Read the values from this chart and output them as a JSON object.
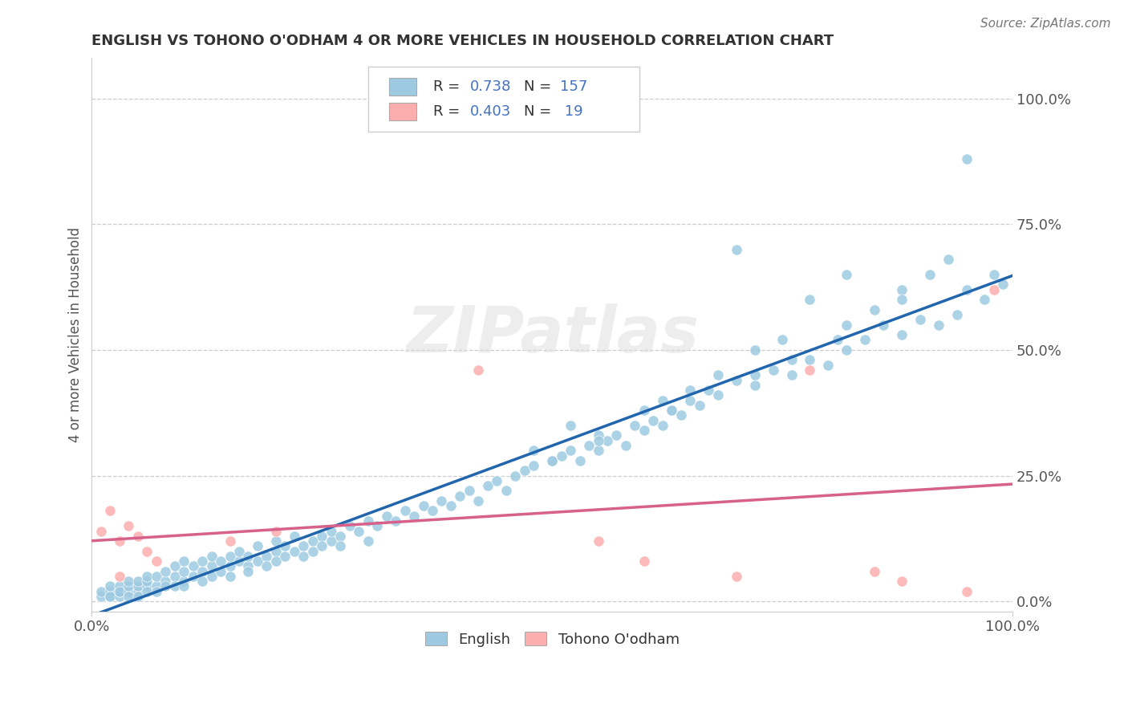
{
  "title": "ENGLISH VS TOHONO O'ODHAM 4 OR MORE VEHICLES IN HOUSEHOLD CORRELATION CHART",
  "source": "Source: ZipAtlas.com",
  "ylabel": "4 or more Vehicles in Household",
  "ytick_labels": [
    "0.0%",
    "25.0%",
    "50.0%",
    "75.0%",
    "100.0%"
  ],
  "ytick_positions": [
    0.0,
    0.25,
    0.5,
    0.75,
    1.0
  ],
  "english_R": 0.738,
  "english_N": 157,
  "tohono_R": 0.403,
  "tohono_N": 19,
  "english_color": "#9ecae1",
  "tohono_color": "#fcaeae",
  "english_line_color": "#2166ac",
  "tohono_line_color": "#d6618a",
  "legend_color": "#4472c4",
  "watermark": "ZIPatlas",
  "english_scatter_x": [
    0.01,
    0.01,
    0.02,
    0.02,
    0.02,
    0.02,
    0.03,
    0.03,
    0.03,
    0.03,
    0.04,
    0.04,
    0.04,
    0.04,
    0.05,
    0.05,
    0.05,
    0.05,
    0.06,
    0.06,
    0.06,
    0.06,
    0.07,
    0.07,
    0.07,
    0.08,
    0.08,
    0.08,
    0.09,
    0.09,
    0.09,
    0.1,
    0.1,
    0.1,
    0.1,
    0.11,
    0.11,
    0.12,
    0.12,
    0.12,
    0.13,
    0.13,
    0.13,
    0.14,
    0.14,
    0.15,
    0.15,
    0.15,
    0.16,
    0.16,
    0.17,
    0.17,
    0.17,
    0.18,
    0.18,
    0.19,
    0.19,
    0.2,
    0.2,
    0.2,
    0.21,
    0.21,
    0.22,
    0.22,
    0.23,
    0.23,
    0.24,
    0.24,
    0.25,
    0.25,
    0.26,
    0.26,
    0.27,
    0.27,
    0.28,
    0.29,
    0.3,
    0.3,
    0.31,
    0.32,
    0.33,
    0.34,
    0.35,
    0.36,
    0.37,
    0.38,
    0.39,
    0.4,
    0.41,
    0.42,
    0.43,
    0.44,
    0.45,
    0.46,
    0.47,
    0.48,
    0.5,
    0.51,
    0.52,
    0.53,
    0.54,
    0.55,
    0.56,
    0.57,
    0.58,
    0.59,
    0.6,
    0.61,
    0.62,
    0.63,
    0.64,
    0.65,
    0.66,
    0.67,
    0.68,
    0.7,
    0.72,
    0.74,
    0.76,
    0.78,
    0.8,
    0.82,
    0.84,
    0.86,
    0.88,
    0.9,
    0.92,
    0.94,
    0.95,
    0.97,
    0.99,
    0.6,
    0.65,
    0.68,
    0.55,
    0.52,
    0.48,
    0.72,
    0.75,
    0.78,
    0.82,
    0.85,
    0.88,
    0.91,
    0.93,
    0.95,
    0.98,
    0.62,
    0.7,
    0.76,
    0.82,
    0.88,
    0.5,
    0.55,
    0.63,
    0.72,
    0.81
  ],
  "english_scatter_y": [
    0.01,
    0.02,
    0.01,
    0.02,
    0.03,
    0.01,
    0.01,
    0.02,
    0.03,
    0.02,
    0.02,
    0.03,
    0.01,
    0.04,
    0.02,
    0.03,
    0.04,
    0.01,
    0.03,
    0.04,
    0.02,
    0.05,
    0.03,
    0.05,
    0.02,
    0.04,
    0.06,
    0.03,
    0.05,
    0.07,
    0.03,
    0.04,
    0.06,
    0.08,
    0.03,
    0.05,
    0.07,
    0.06,
    0.08,
    0.04,
    0.07,
    0.09,
    0.05,
    0.08,
    0.06,
    0.07,
    0.09,
    0.05,
    0.08,
    0.1,
    0.07,
    0.09,
    0.06,
    0.08,
    0.11,
    0.09,
    0.07,
    0.1,
    0.12,
    0.08,
    0.09,
    0.11,
    0.1,
    0.13,
    0.11,
    0.09,
    0.12,
    0.1,
    0.13,
    0.11,
    0.12,
    0.14,
    0.13,
    0.11,
    0.15,
    0.14,
    0.12,
    0.16,
    0.15,
    0.17,
    0.16,
    0.18,
    0.17,
    0.19,
    0.18,
    0.2,
    0.19,
    0.21,
    0.22,
    0.2,
    0.23,
    0.24,
    0.22,
    0.25,
    0.26,
    0.27,
    0.28,
    0.29,
    0.3,
    0.28,
    0.31,
    0.3,
    0.32,
    0.33,
    0.31,
    0.35,
    0.34,
    0.36,
    0.35,
    0.38,
    0.37,
    0.4,
    0.39,
    0.42,
    0.41,
    0.44,
    0.43,
    0.46,
    0.45,
    0.48,
    0.47,
    0.5,
    0.52,
    0.55,
    0.53,
    0.56,
    0.55,
    0.57,
    0.88,
    0.6,
    0.63,
    0.38,
    0.42,
    0.45,
    0.33,
    0.35,
    0.3,
    0.5,
    0.52,
    0.6,
    0.55,
    0.58,
    0.62,
    0.65,
    0.68,
    0.62,
    0.65,
    0.4,
    0.7,
    0.48,
    0.65,
    0.6,
    0.28,
    0.32,
    0.38,
    0.45,
    0.52
  ],
  "tohono_scatter_x": [
    0.01,
    0.02,
    0.03,
    0.03,
    0.04,
    0.05,
    0.06,
    0.07,
    0.15,
    0.2,
    0.42,
    0.55,
    0.6,
    0.7,
    0.78,
    0.85,
    0.88,
    0.95,
    0.98
  ],
  "tohono_scatter_y": [
    0.14,
    0.18,
    0.05,
    0.12,
    0.15,
    0.13,
    0.1,
    0.08,
    0.12,
    0.14,
    0.46,
    0.12,
    0.08,
    0.05,
    0.46,
    0.06,
    0.04,
    0.02,
    0.62
  ]
}
